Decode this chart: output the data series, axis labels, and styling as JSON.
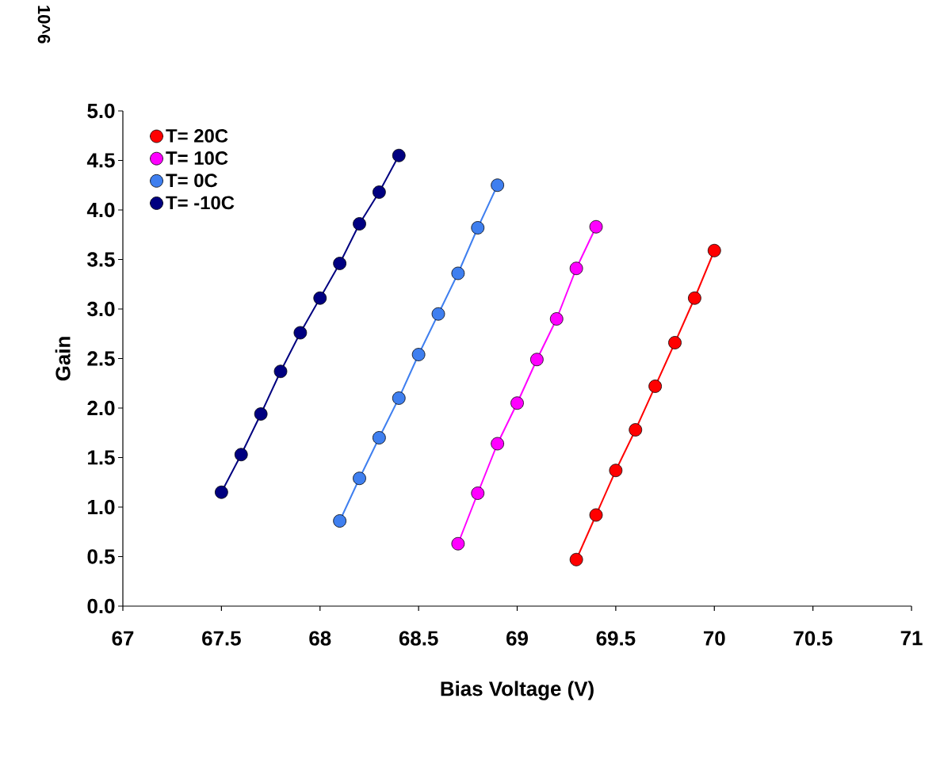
{
  "chart_data": {
    "type": "line",
    "xlabel": "Bias Voltage (V)",
    "ylabel": "Gain",
    "annotations": [
      "10^6"
    ],
    "xlim": [
      67,
      71
    ],
    "ylim": [
      0,
      5
    ],
    "xticks": [
      67,
      67.5,
      68,
      68.5,
      69,
      69.5,
      70,
      70.5,
      71
    ],
    "yticks": [
      {
        "value": 0,
        "label": "0.0"
      },
      {
        "value": 0.5,
        "label": "0.5"
      },
      {
        "value": 1,
        "label": "1.0"
      },
      {
        "value": 1.5,
        "label": "1.5"
      },
      {
        "value": 2,
        "label": "2.0"
      },
      {
        "value": 2.5,
        "label": "2.5"
      },
      {
        "value": 3,
        "label": "3.0"
      },
      {
        "value": 3.5,
        "label": "3.5"
      },
      {
        "value": 4,
        "label": "4.0"
      },
      {
        "value": 4.5,
        "label": "4.5"
      },
      {
        "value": 5,
        "label": "5.0"
      }
    ],
    "grid": false,
    "legend": "top left",
    "marker": "circle",
    "line_style": "solid",
    "series": [
      {
        "name": "T= 20C",
        "color": "#ff0000",
        "x": [
          69.3,
          69.4,
          69.5,
          69.6,
          69.7,
          69.8,
          69.9,
          70.0
        ],
        "values": [
          0.47,
          0.92,
          1.37,
          1.78,
          2.22,
          2.66,
          3.11,
          3.59
        ]
      },
      {
        "name": "T= 10C",
        "color": "#ff00ff",
        "x": [
          68.7,
          68.8,
          68.9,
          69.0,
          69.1,
          69.2,
          69.3,
          69.4
        ],
        "values": [
          0.63,
          1.14,
          1.64,
          2.05,
          2.49,
          2.9,
          3.41,
          3.83
        ]
      },
      {
        "name": "T= 0C",
        "color": "#3f7fef",
        "x": [
          68.1,
          68.2,
          68.3,
          68.4,
          68.5,
          68.6,
          68.7,
          68.8,
          68.9
        ],
        "values": [
          0.86,
          1.29,
          1.7,
          2.1,
          2.54,
          2.95,
          3.36,
          3.82,
          4.25
        ]
      },
      {
        "name": "T= -10C",
        "color": "#000080",
        "x": [
          67.5,
          67.6,
          67.7,
          67.8,
          67.9,
          68.0,
          68.1,
          68.2,
          68.3,
          68.4
        ],
        "values": [
          1.15,
          1.53,
          1.94,
          2.37,
          2.76,
          3.11,
          3.46,
          3.86,
          4.18,
          4.55
        ]
      }
    ]
  }
}
